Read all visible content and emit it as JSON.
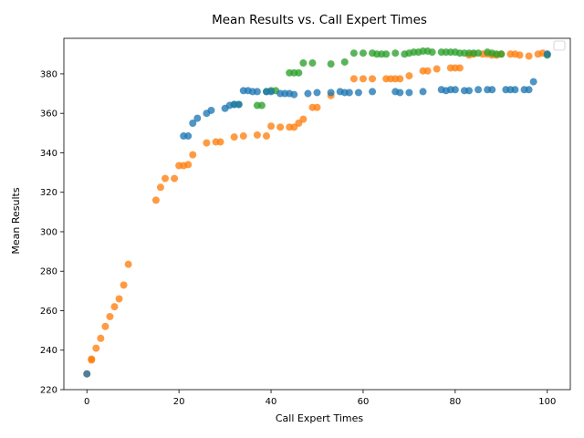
{
  "chart_data": {
    "type": "scatter",
    "title": "Mean Results vs. Call Expert Times",
    "xlabel": "Call Expert Times",
    "ylabel": "Mean Results",
    "xlim": [
      -5,
      105
    ],
    "ylim": [
      220,
      398
    ],
    "xticks": [
      0,
      20,
      40,
      60,
      80,
      100
    ],
    "yticks": [
      220,
      240,
      260,
      280,
      300,
      320,
      340,
      360,
      380
    ],
    "grid": false,
    "legend": "top-right (empty)",
    "series": [
      {
        "color": "#ff7f0e",
        "points": [
          [
            0,
            228
          ],
          [
            1,
            235.5
          ],
          [
            1,
            235
          ],
          [
            2,
            241
          ],
          [
            3,
            246
          ],
          [
            4,
            252
          ],
          [
            5,
            257
          ],
          [
            6,
            262
          ],
          [
            7,
            266
          ],
          [
            8,
            273
          ],
          [
            9,
            283.5
          ],
          [
            15,
            316
          ],
          [
            16,
            322.5
          ],
          [
            17,
            327
          ],
          [
            19,
            327
          ],
          [
            20,
            333.5
          ],
          [
            21,
            333.5
          ],
          [
            22,
            334
          ],
          [
            23,
            339
          ],
          [
            26,
            345
          ],
          [
            28,
            345.5
          ],
          [
            29,
            345.5
          ],
          [
            32,
            348
          ],
          [
            34,
            348.5
          ],
          [
            37,
            349
          ],
          [
            39,
            348.5
          ],
          [
            40,
            353.5
          ],
          [
            42,
            353
          ],
          [
            44,
            353
          ],
          [
            45,
            353
          ],
          [
            46,
            355
          ],
          [
            47,
            357
          ],
          [
            49,
            363
          ],
          [
            50,
            363
          ],
          [
            53,
            369
          ],
          [
            58,
            377.5
          ],
          [
            60,
            377.5
          ],
          [
            62,
            377.5
          ],
          [
            65,
            377.5
          ],
          [
            66,
            377.5
          ],
          [
            67,
            377.5
          ],
          [
            68,
            377.5
          ],
          [
            70,
            379
          ],
          [
            73,
            381.5
          ],
          [
            74,
            381.5
          ],
          [
            76,
            382.5
          ],
          [
            79,
            383
          ],
          [
            80,
            383
          ],
          [
            81,
            383
          ],
          [
            83,
            389.5
          ],
          [
            84,
            390
          ],
          [
            86,
            390
          ],
          [
            87,
            390
          ],
          [
            88,
            389.5
          ],
          [
            89,
            389.5
          ],
          [
            90,
            390
          ],
          [
            92,
            390
          ],
          [
            93,
            390
          ],
          [
            94,
            389.5
          ],
          [
            96,
            389
          ],
          [
            98,
            390
          ],
          [
            99,
            390.5
          ],
          [
            100,
            390
          ]
        ]
      },
      {
        "color": "#2ca02c",
        "points": [
          [
            32,
            364.5
          ],
          [
            33,
            364.5
          ],
          [
            37,
            364
          ],
          [
            38,
            364
          ],
          [
            39,
            371
          ],
          [
            40,
            371.5
          ],
          [
            41,
            371.5
          ],
          [
            44,
            380.5
          ],
          [
            45,
            380.5
          ],
          [
            46,
            380.5
          ],
          [
            47,
            385.5
          ],
          [
            49,
            385.5
          ],
          [
            53,
            385
          ],
          [
            56,
            386
          ],
          [
            58,
            390.5
          ],
          [
            60,
            390.5
          ],
          [
            62,
            390.5
          ],
          [
            63,
            390
          ],
          [
            64,
            390
          ],
          [
            65,
            390
          ],
          [
            67,
            390.5
          ],
          [
            69,
            390
          ],
          [
            70,
            390.5
          ],
          [
            71,
            391
          ],
          [
            72,
            391
          ],
          [
            73,
            391.5
          ],
          [
            74,
            391.5
          ],
          [
            75,
            391
          ],
          [
            77,
            391
          ],
          [
            78,
            391
          ],
          [
            79,
            391
          ],
          [
            80,
            391
          ],
          [
            81,
            390.5
          ],
          [
            82,
            390.5
          ],
          [
            83,
            390.5
          ],
          [
            84,
            390.5
          ],
          [
            85,
            390.5
          ],
          [
            87,
            391
          ],
          [
            88,
            390.5
          ],
          [
            89,
            390
          ],
          [
            90,
            390
          ],
          [
            100,
            389.5
          ]
        ]
      },
      {
        "color": "#1f77b4",
        "points": [
          [
            0,
            228
          ],
          [
            21,
            348.5
          ],
          [
            22,
            348.5
          ],
          [
            23,
            355
          ],
          [
            24,
            357.5
          ],
          [
            26,
            360
          ],
          [
            27,
            361.5
          ],
          [
            30,
            362.5
          ],
          [
            31,
            364
          ],
          [
            32,
            364.5
          ],
          [
            33,
            364.5
          ],
          [
            34,
            371.5
          ],
          [
            35,
            371.5
          ],
          [
            36,
            371
          ],
          [
            37,
            371
          ],
          [
            39,
            371
          ],
          [
            40,
            371
          ],
          [
            42,
            370
          ],
          [
            43,
            370
          ],
          [
            44,
            370
          ],
          [
            45,
            369.5
          ],
          [
            48,
            370
          ],
          [
            50,
            370.5
          ],
          [
            53,
            370.5
          ],
          [
            55,
            371
          ],
          [
            56,
            370.5
          ],
          [
            57,
            370.5
          ],
          [
            59,
            370.5
          ],
          [
            62,
            371
          ],
          [
            67,
            371
          ],
          [
            68,
            370.5
          ],
          [
            70,
            370.5
          ],
          [
            73,
            371
          ],
          [
            77,
            372
          ],
          [
            78,
            371.5
          ],
          [
            79,
            372
          ],
          [
            80,
            372
          ],
          [
            82,
            371.5
          ],
          [
            83,
            371.5
          ],
          [
            85,
            372
          ],
          [
            87,
            372
          ],
          [
            88,
            372
          ],
          [
            91,
            372
          ],
          [
            92,
            372
          ],
          [
            93,
            372
          ],
          [
            95,
            372
          ],
          [
            96,
            372
          ],
          [
            97,
            376
          ],
          [
            100,
            390
          ]
        ]
      }
    ]
  }
}
